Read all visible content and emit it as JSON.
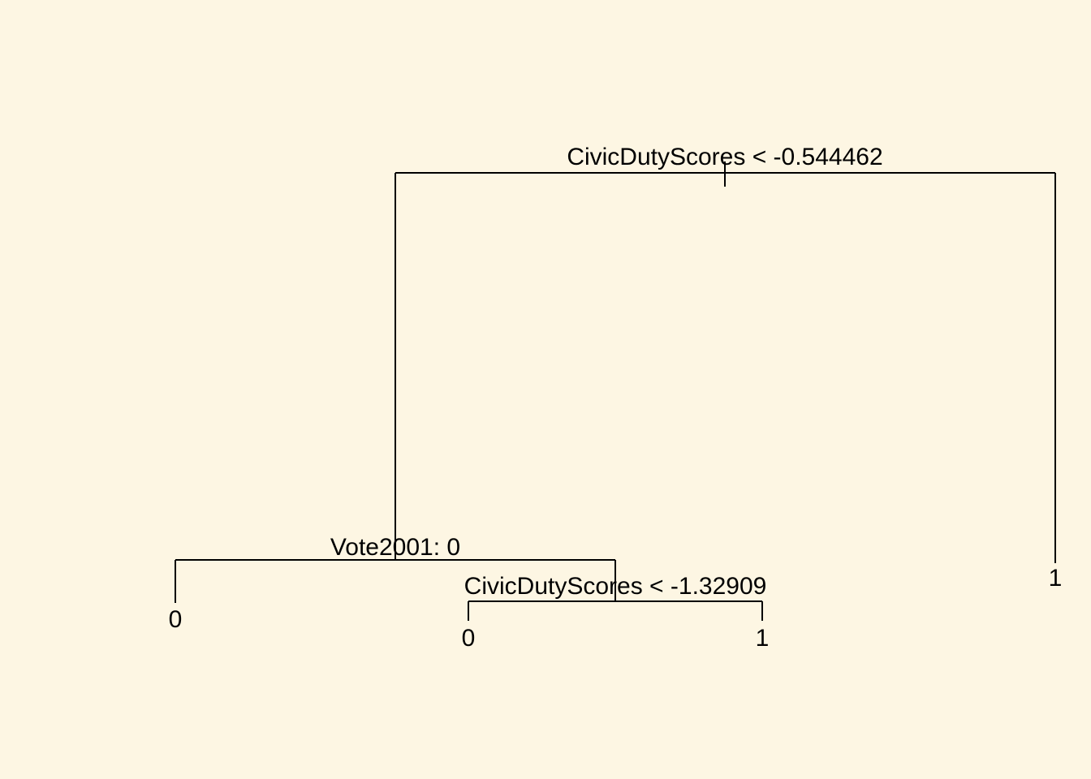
{
  "colors": {
    "background": "#fdf6e3",
    "ink": "#000000"
  },
  "tree": {
    "root": {
      "split_label": "CivicDutyScores < -0.544462",
      "left": {
        "split_label": "Vote2001: 0",
        "left": {
          "leaf_label": "0"
        },
        "right": {
          "split_label": "CivicDutyScores < -1.32909",
          "left": {
            "leaf_label": "0"
          },
          "right": {
            "leaf_label": "1"
          }
        }
      },
      "right": {
        "leaf_label": "1"
      }
    }
  }
}
